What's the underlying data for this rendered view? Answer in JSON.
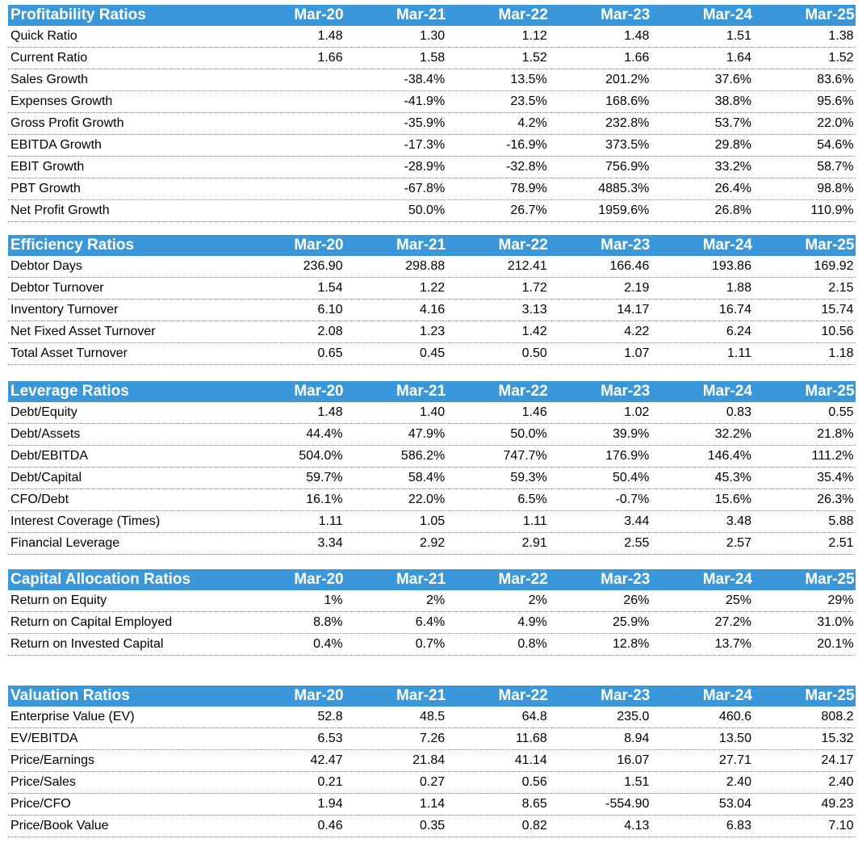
{
  "columns": [
    "Mar-20",
    "Mar-21",
    "Mar-22",
    "Mar-23",
    "Mar-24",
    "Mar-25"
  ],
  "sections": [
    {
      "title": "Profitability Ratios",
      "rows": [
        {
          "label": "Quick Ratio",
          "values": [
            "1.48",
            "1.30",
            "1.12",
            "1.48",
            "1.51",
            "1.38"
          ]
        },
        {
          "label": "Current Ratio",
          "values": [
            "1.66",
            "1.58",
            "1.52",
            "1.66",
            "1.64",
            "1.52"
          ]
        },
        {
          "label": "Sales Growth",
          "values": [
            "",
            "-38.4%",
            "13.5%",
            "201.2%",
            "37.6%",
            "83.6%"
          ]
        },
        {
          "label": "Expenses Growth",
          "values": [
            "",
            "-41.9%",
            "23.5%",
            "168.6%",
            "38.8%",
            "95.6%"
          ]
        },
        {
          "label": "Gross Profit Growth",
          "values": [
            "",
            "-35.9%",
            "4.2%",
            "232.8%",
            "53.7%",
            "22.0%"
          ]
        },
        {
          "label": "EBITDA Growth",
          "values": [
            "",
            "-17.3%",
            "-16.9%",
            "373.5%",
            "29.8%",
            "54.6%"
          ]
        },
        {
          "label": "EBIT Growth",
          "values": [
            "",
            "-28.9%",
            "-32.8%",
            "756.9%",
            "33.2%",
            "58.7%"
          ]
        },
        {
          "label": "PBT Growth",
          "values": [
            "",
            "-67.8%",
            "78.9%",
            "4885.3%",
            "26.4%",
            "98.8%"
          ]
        },
        {
          "label": "Net Profit Growth",
          "values": [
            "",
            "50.0%",
            "26.7%",
            "1959.6%",
            "26.8%",
            "110.9%"
          ]
        }
      ]
    },
    {
      "title": "Efficiency Ratios",
      "rows": [
        {
          "label": "Debtor Days",
          "values": [
            "236.90",
            "298.88",
            "212.41",
            "166.46",
            "193.86",
            "169.92"
          ]
        },
        {
          "label": "Debtor Turnover",
          "values": [
            "1.54",
            "1.22",
            "1.72",
            "2.19",
            "1.88",
            "2.15"
          ]
        },
        {
          "label": "Inventory Turnover",
          "values": [
            "6.10",
            "4.16",
            "3.13",
            "14.17",
            "16.74",
            "15.74"
          ]
        },
        {
          "label": "Net Fixed Asset Turnover",
          "values": [
            "2.08",
            "1.23",
            "1.42",
            "4.22",
            "6.24",
            "10.56"
          ]
        },
        {
          "label": "Total Asset Turnover",
          "values": [
            "0.65",
            "0.45",
            "0.50",
            "1.07",
            "1.11",
            "1.18"
          ]
        }
      ]
    },
    {
      "title": "Leverage Ratios",
      "rows": [
        {
          "label": "Debt/Equity",
          "values": [
            "1.48",
            "1.40",
            "1.46",
            "1.02",
            "0.83",
            "0.55"
          ]
        },
        {
          "label": "Debt/Assets",
          "values": [
            "44.4%",
            "47.9%",
            "50.0%",
            "39.9%",
            "32.2%",
            "21.8%"
          ]
        },
        {
          "label": "Debt/EBITDA",
          "values": [
            "504.0%",
            "586.2%",
            "747.7%",
            "176.9%",
            "146.4%",
            "111.2%"
          ]
        },
        {
          "label": "Debt/Capital",
          "values": [
            "59.7%",
            "58.4%",
            "59.3%",
            "50.4%",
            "45.3%",
            "35.4%"
          ]
        },
        {
          "label": "CFO/Debt",
          "values": [
            "16.1%",
            "22.0%",
            "6.5%",
            "-0.7%",
            "15.6%",
            "26.3%"
          ]
        },
        {
          "label": "Interest Coverage (Times)",
          "values": [
            "1.11",
            "1.05",
            "1.11",
            "3.44",
            "3.48",
            "5.88"
          ]
        },
        {
          "label": "Financial Leverage",
          "values": [
            "3.34",
            "2.92",
            "2.91",
            "2.55",
            "2.57",
            "2.51"
          ]
        }
      ]
    },
    {
      "title": "Capital Allocation Ratios",
      "rows": [
        {
          "label": "Return on Equity",
          "values": [
            "1%",
            "2%",
            "2%",
            "26%",
            "25%",
            "29%"
          ]
        },
        {
          "label": "Return on Capital Employed",
          "values": [
            "8.8%",
            "6.4%",
            "4.9%",
            "25.9%",
            "27.2%",
            "31.0%"
          ]
        },
        {
          "label": "Return on Invested Capital",
          "values": [
            "0.4%",
            "0.7%",
            "0.8%",
            "12.8%",
            "13.7%",
            "20.1%"
          ]
        }
      ]
    },
    {
      "title": "Valuation Ratios",
      "rows": [
        {
          "label": "Enterprise Value (EV)",
          "values": [
            "52.8",
            "48.5",
            "64.8",
            "235.0",
            "460.6",
            "808.2"
          ]
        },
        {
          "label": "EV/EBITDA",
          "values": [
            "6.53",
            "7.26",
            "11.68",
            "8.94",
            "13.50",
            "15.32"
          ]
        },
        {
          "label": "Price/Earnings",
          "values": [
            "42.47",
            "21.84",
            "41.14",
            "16.07",
            "27.71",
            "24.17"
          ]
        },
        {
          "label": "Price/Sales",
          "values": [
            "0.21",
            "0.27",
            "0.56",
            "1.51",
            "2.40",
            "2.40"
          ]
        },
        {
          "label": "Price/CFO",
          "values": [
            "1.94",
            "1.14",
            "8.65",
            "-554.90",
            "53.04",
            "49.23"
          ]
        },
        {
          "label": "Price/Book Value",
          "values": [
            "0.46",
            "0.35",
            "0.82",
            "4.13",
            "6.83",
            "7.10"
          ]
        }
      ]
    }
  ]
}
